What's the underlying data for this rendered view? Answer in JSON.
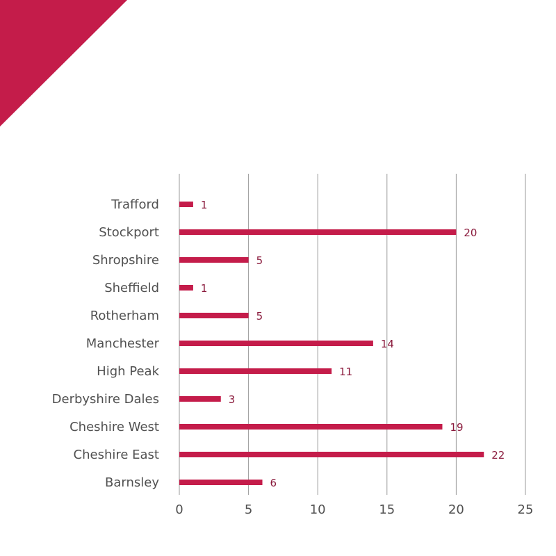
{
  "colors": {
    "accent": "#c41c4a",
    "data_label": "#8a1a3c",
    "grid": "#9a9a9a",
    "text": "#505050"
  },
  "chart_data": {
    "type": "bar",
    "orientation": "horizontal",
    "categories": [
      "Trafford",
      "Stockport",
      "Shropshire",
      "Sheffield",
      "Rotherham",
      "Manchester",
      "High Peak",
      "Derbyshire Dales",
      "Cheshire West",
      "Cheshire East",
      "Barnsley"
    ],
    "values": [
      1,
      20,
      5,
      1,
      5,
      14,
      11,
      3,
      19,
      22,
      6
    ],
    "data_labels": [
      "1",
      "20",
      "5",
      "1",
      "5",
      "14",
      "11",
      "3",
      "19",
      "22",
      "6"
    ],
    "xticks": [
      "0",
      "5",
      "10",
      "15",
      "20",
      "25"
    ],
    "xlim": [
      0,
      25
    ],
    "grid": "vertical",
    "legend": "none"
  }
}
